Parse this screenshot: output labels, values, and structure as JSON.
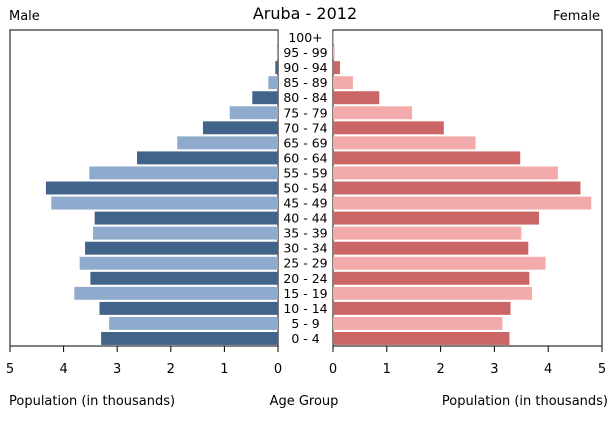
{
  "chart_data": {
    "type": "bar",
    "title": "Aruba - 2012",
    "left_label": "Male",
    "right_label": "Female",
    "xlabel_left": "Population (in thousands)",
    "xlabel_center": "Age Group",
    "xlabel_right": "Population (in thousands)",
    "xlim": [
      0,
      5
    ],
    "x_ticks": [
      0,
      1,
      2,
      3,
      4,
      5
    ],
    "categories": [
      "0 - 4",
      "5 - 9",
      "10 - 14",
      "15 - 19",
      "20 - 24",
      "25 - 29",
      "30 - 34",
      "35 - 39",
      "40 - 44",
      "45 - 49",
      "50 - 54",
      "55 - 59",
      "60 - 64",
      "65 - 69",
      "70 - 74",
      "75 - 79",
      "80 - 84",
      "85 - 89",
      "90 - 94",
      "95 - 99",
      "100+"
    ],
    "series": [
      {
        "name": "Male",
        "values": [
          3.3,
          3.15,
          3.33,
          3.8,
          3.5,
          3.7,
          3.6,
          3.45,
          3.42,
          4.23,
          4.33,
          3.52,
          2.63,
          1.88,
          1.4,
          0.9,
          0.48,
          0.18,
          0.05,
          0.02,
          0.01
        ]
      },
      {
        "name": "Female",
        "values": [
          3.28,
          3.15,
          3.3,
          3.7,
          3.65,
          3.95,
          3.63,
          3.5,
          3.83,
          4.8,
          4.6,
          4.18,
          3.48,
          2.65,
          2.06,
          1.47,
          0.86,
          0.37,
          0.13,
          0.03,
          0.01
        ]
      }
    ],
    "colors": {
      "dark_male": "#43648a",
      "light_male": "#8eaacc",
      "dark_female": "#cc6666",
      "light_female": "#f2aaaa",
      "axis": "#000000"
    }
  }
}
